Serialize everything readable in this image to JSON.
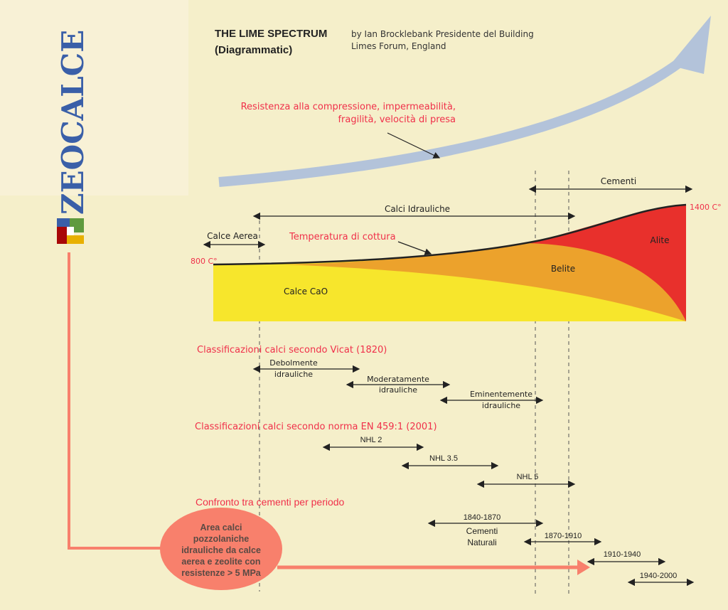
{
  "title": {
    "line1": "THE LIME SPECTRUM",
    "line2": "(Diagrammatic)"
  },
  "byline": {
    "line1": "by Ian Brocklebank Presidente del Building",
    "line2": "Limes Forum, England"
  },
  "logo": {
    "text": "ZEOCALCE",
    "colors": [
      "#3a5fa8",
      "#5f9a3e",
      "#a80808",
      "#ffffff",
      "#e8b000"
    ]
  },
  "trend": {
    "line1": "Resistenza alla compressione, impermeabilità,",
    "line2": "fragilità, velocità di presa"
  },
  "ranges": {
    "cementi": "Cementi",
    "calci_idrauliche": "Calci Idrauliche",
    "calce_aerea": "Calce Aerea"
  },
  "temperature": {
    "label": "Temperatura di cottura",
    "low": "800 C°",
    "high": "1400 C°"
  },
  "regions": {
    "cao": "Calce CaO",
    "belite": "Belite",
    "alite": "Alite"
  },
  "vicat": {
    "heading": "Classificazioni calci secondo Vicat (1820)",
    "items": [
      {
        "line1": "Debolmente",
        "line2": "idrauliche"
      },
      {
        "line1": "Moderatamente",
        "line2": "idrauliche"
      },
      {
        "line1": "Eminentemente",
        "line2": "idrauliche"
      }
    ]
  },
  "en459": {
    "heading": "Classificazioni calci secondo norma EN 459:1 (2001)",
    "items": [
      "NHL 2",
      "NHL 3.5",
      "NHL 5"
    ]
  },
  "periods": {
    "heading": "Confronto tra cementi per periodo",
    "items": [
      "1840-1870",
      "1870-1910",
      "1910-1940",
      "1940-2000"
    ],
    "natural_line1": "Cementi",
    "natural_line2": "Naturali"
  },
  "callout": {
    "lines": [
      "Area calci",
      "pozzolaniche",
      "idrauliche da calce",
      "aerea e zeolite con",
      "resistenze > 5 MPa"
    ],
    "color": "#f8806c"
  },
  "colors": {
    "yellow": "#f7e62c",
    "orange": "#eca22c",
    "red": "#e8302c",
    "arrow_blue": "#b3c3da"
  }
}
